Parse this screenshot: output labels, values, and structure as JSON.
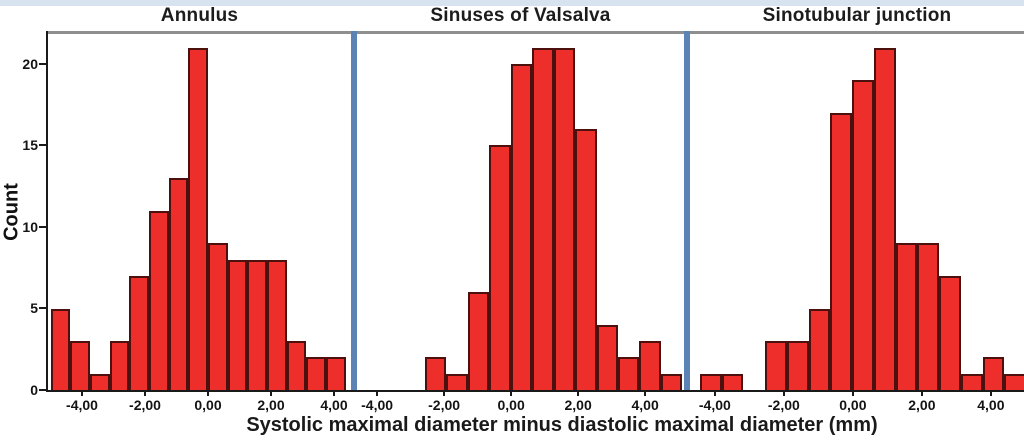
{
  "figure": {
    "y_axis": {
      "label": "Count",
      "ticks": [
        0,
        5,
        10,
        15,
        20
      ],
      "max": 21.9
    },
    "x_axis": {
      "label": "Systolic maximal diameter minus diastolic maximal diameter (mm)",
      "tick_values": [
        -4,
        -2,
        0,
        2,
        4
      ],
      "tick_labels": [
        "-4,00",
        "-2,00",
        "0,00",
        "2,00",
        "4,00"
      ]
    },
    "colors": {
      "bar_fill": "#ee2e2b",
      "bar_border": "#4c100f",
      "separator_blue": "#5b83b6",
      "frame_gray": "#8f8f8f",
      "axis_black": "#1a1a1a",
      "top_strip": "#d8e3f0"
    }
  },
  "chart_data": [
    {
      "type": "bar",
      "title": "Annulus",
      "xlabel": "Systolic maximal diameter minus diastolic maximal diameter (mm)",
      "ylabel": "Count",
      "ylim": [
        0,
        21.9
      ],
      "x_range": [
        -5.08,
        4.54
      ],
      "first_bin_x": -5.0,
      "bin_width": 0.625,
      "counts": [
        5,
        3,
        1,
        3,
        7,
        11,
        13,
        21,
        9,
        8,
        8,
        8,
        3,
        2,
        2
      ],
      "x_tick_labels": [
        "-4,00",
        "-2,00",
        "0,00",
        "2,00",
        "4,00"
      ],
      "grid": false,
      "legend": "none"
    },
    {
      "type": "bar",
      "title": "Sinuses of Valsalva",
      "xlabel": "Systolic maximal diameter minus diastolic maximal diameter (mm)",
      "ylabel": "Count",
      "ylim": [
        0,
        21.9
      ],
      "x_range": [
        -4.6,
        5.16
      ],
      "first_bin_x": -2.57,
      "bin_width": 0.64,
      "counts": [
        2,
        1,
        6,
        15,
        20,
        21,
        21,
        16,
        4,
        2,
        3,
        1
      ],
      "x_tick_labels": [
        "-4,00",
        "-2,00",
        "0,00",
        "2,00",
        "4,00"
      ],
      "grid": false,
      "legend": "none"
    },
    {
      "type": "bar",
      "title": "Sinotubular junction",
      "xlabel": "Systolic maximal diameter minus diastolic maximal diameter (mm)",
      "ylabel": "Count",
      "ylim": [
        0,
        21.9
      ],
      "x_range": [
        -4.72,
        4.96
      ],
      "first_bin_x": -4.43,
      "bin_width": 0.63,
      "counts": [
        1,
        1,
        0,
        3,
        3,
        5,
        17,
        19,
        21,
        9,
        9,
        7,
        1,
        2,
        1
      ],
      "x_tick_labels": [
        "-4,00",
        "-2,00",
        "0,00",
        "2,00",
        "4,00"
      ],
      "grid": false,
      "legend": "none"
    }
  ]
}
